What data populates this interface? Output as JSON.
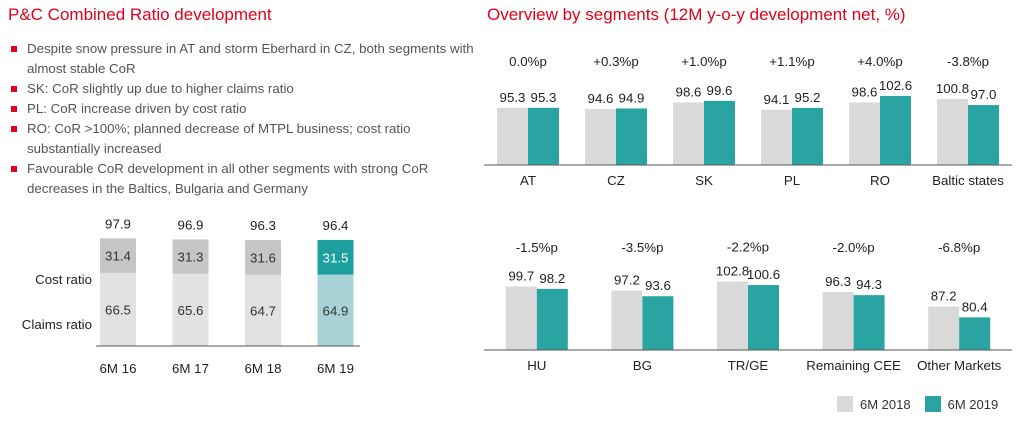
{
  "left_title": "P&C Combined Ratio development",
  "right_title": "Overview by segments (12M y-o-y development net, %)",
  "bullets": [
    "Despite snow pressure in AT and storm Eberhard in CZ, both segments with almost stable CoR",
    "SK: CoR slightly up due to higher claims ratio",
    "PL: CoR increase driven by cost ratio",
    "RO: CoR >100%; planned decrease of MTPL business; cost ratio substantially increased",
    "Favourable CoR development in all other segments with strong CoR decreases in the Baltics, Bulgaria and Germany"
  ],
  "colors": {
    "accent_red": "#e3001b",
    "gray_2018": "#d9d9d9",
    "teal_2019": "#2aa3a3",
    "stack_cost": "#c6c6c6",
    "stack_claims": "#e2e2e2",
    "stack_cost_2019": "#1e9f9f",
    "stack_claims_2019": "#a8d3d6"
  },
  "legend": {
    "series_2018": "6M 2018",
    "series_2019": "6M 2019"
  },
  "chart_data": [
    {
      "id": "combined-ratio",
      "type": "bar",
      "stacked": true,
      "categories": [
        "6M 16",
        "6M 17",
        "6M 18",
        "6M 19"
      ],
      "series": [
        {
          "name": "Claims ratio",
          "values": [
            66.5,
            65.6,
            64.7,
            64.9
          ]
        },
        {
          "name": "Cost ratio",
          "values": [
            31.4,
            31.3,
            31.6,
            31.5
          ]
        }
      ],
      "totals": [
        97.9,
        96.9,
        96.3,
        96.4
      ],
      "highlight_category": "6M 19",
      "ylim": [
        0,
        100
      ]
    },
    {
      "id": "segments-top",
      "type": "bar",
      "categories": [
        "AT",
        "CZ",
        "SK",
        "PL",
        "RO",
        "Baltic states"
      ],
      "series": [
        {
          "name": "6M 2018",
          "values": [
            95.3,
            94.6,
            98.6,
            94.1,
            98.6,
            100.8
          ]
        },
        {
          "name": "6M 2019",
          "values": [
            95.3,
            94.9,
            99.6,
            95.2,
            102.6,
            97.0
          ]
        }
      ],
      "value_labels_2018": [
        "95.3",
        "94.6",
        "98.6",
        "94.1",
        "98.6",
        "100.8"
      ],
      "value_labels_2019": [
        "95.3",
        "94.9",
        "99.6",
        "95.2",
        "102.6",
        "97.0"
      ],
      "deltas": [
        "0.0%p",
        "+0.3%p",
        "+1.0%p",
        "+1.1%p",
        "+4.0%p",
        "-3.8%p"
      ],
      "ylim": [
        60,
        110
      ]
    },
    {
      "id": "segments-bottom",
      "type": "bar",
      "categories": [
        "HU",
        "BG",
        "TR/GE",
        "Remaining CEE",
        "Other Markets"
      ],
      "series": [
        {
          "name": "6M 2018",
          "values": [
            99.7,
            97.2,
            102.8,
            96.3,
            87.2
          ]
        },
        {
          "name": "6M 2019",
          "values": [
            98.2,
            93.6,
            100.6,
            94.3,
            80.4
          ]
        }
      ],
      "value_labels_2018": [
        "99.7",
        "97.2",
        "102.8",
        "96.3",
        "87.2"
      ],
      "value_labels_2019": [
        "98.2",
        "93.6",
        "100.6",
        "94.3",
        "80.4"
      ],
      "deltas": [
        "-1.5%p",
        "-3.5%p",
        "-2.2%p",
        "-2.0%p",
        "-6.8%p"
      ],
      "ylim": [
        60,
        110
      ]
    }
  ]
}
